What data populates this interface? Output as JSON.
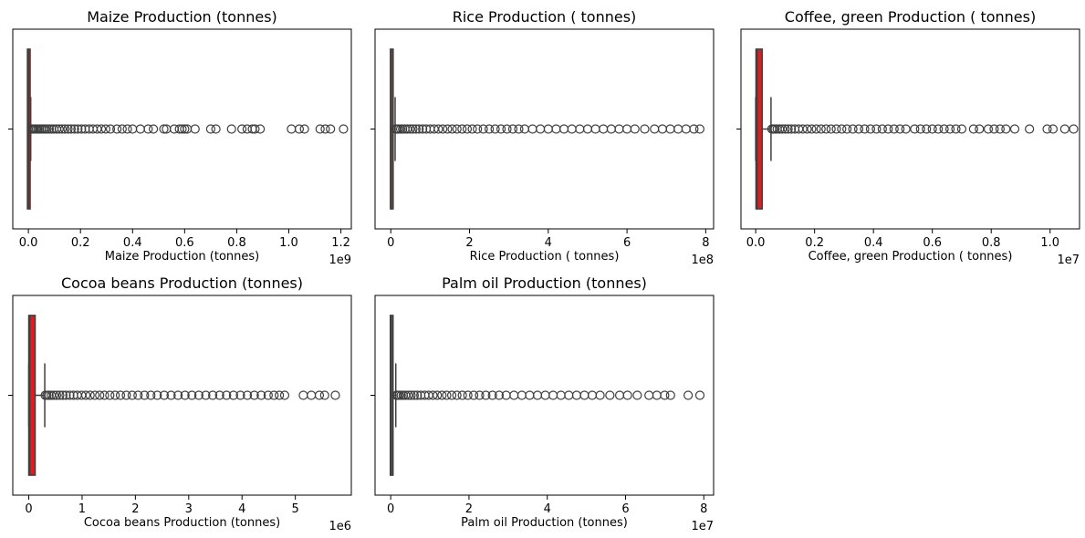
{
  "colors": {
    "box_fill": "#e8191c",
    "line": "#3f3f3f",
    "frame": "#000000"
  },
  "chart_data": [
    {
      "type": "boxplot",
      "orientation": "horizontal",
      "title": "Maize Production (tonnes)",
      "xlabel": "Maize Production (tonnes)",
      "ylabel": "",
      "offset_label": "1e9",
      "xlim": [
        -0.06,
        1.24
      ],
      "xticks": [
        0.0,
        0.2,
        0.4,
        0.6,
        0.8,
        1.0,
        1.2
      ],
      "xtick_labels": [
        "0.0",
        "0.2",
        "0.4",
        "0.6",
        "0.8",
        "1.0",
        "1.2"
      ],
      "box": {
        "q1": 0.0,
        "median": 0.0005,
        "q3": 0.003,
        "whisker_low": 0.0,
        "whisker_high": 0.009
      },
      "outliers": [
        0.012,
        0.016,
        0.021,
        0.026,
        0.031,
        0.037,
        0.043,
        0.05,
        0.057,
        0.064,
        0.072,
        0.08,
        0.089,
        0.098,
        0.108,
        0.118,
        0.129,
        0.14,
        0.152,
        0.164,
        0.177,
        0.19,
        0.204,
        0.218,
        0.233,
        0.248,
        0.264,
        0.28,
        0.297,
        0.315,
        0.34,
        0.36,
        0.38,
        0.4,
        0.43,
        0.46,
        0.48,
        0.52,
        0.53,
        0.56,
        0.58,
        0.59,
        0.6,
        0.61,
        0.64,
        0.7,
        0.72,
        0.78,
        0.82,
        0.84,
        0.86,
        0.87,
        0.89,
        1.01,
        1.04,
        1.06,
        1.12,
        1.14,
        1.16,
        1.21
      ]
    },
    {
      "type": "boxplot",
      "orientation": "horizontal",
      "title": "Rice  Production ( tonnes)",
      "xlabel": "Rice  Production ( tonnes)",
      "ylabel": "",
      "offset_label": "1e8",
      "xlim": [
        -0.4,
        8.2
      ],
      "xticks": [
        0,
        2,
        4,
        6,
        8
      ],
      "xtick_labels": [
        "0",
        "2",
        "4",
        "6",
        "8"
      ],
      "box": {
        "q1": 0.0,
        "median": 0.005,
        "q3": 0.05,
        "whisker_low": 0.0,
        "whisker_high": 0.11
      },
      "outliers": [
        0.13,
        0.16,
        0.2,
        0.25,
        0.3,
        0.36,
        0.42,
        0.49,
        0.56,
        0.64,
        0.72,
        0.81,
        0.9,
        1.0,
        1.1,
        1.21,
        1.32,
        1.44,
        1.56,
        1.68,
        1.81,
        1.94,
        2.07,
        2.2,
        2.35,
        2.5,
        2.65,
        2.8,
        2.95,
        3.1,
        3.25,
        3.4,
        3.6,
        3.8,
        4.0,
        4.2,
        4.4,
        4.6,
        4.8,
        5.0,
        5.2,
        5.4,
        5.6,
        5.8,
        6.0,
        6.2,
        6.45,
        6.7,
        6.9,
        7.1,
        7.3,
        7.5,
        7.7,
        7.85
      ]
    },
    {
      "type": "boxplot",
      "orientation": "horizontal",
      "title": "Coffee, green Production ( tonnes)",
      "xlabel": "Coffee, green Production ( tonnes)",
      "ylabel": "",
      "offset_label": "1e7",
      "xlim": [
        -0.05,
        1.1
      ],
      "xticks": [
        0.0,
        0.2,
        0.4,
        0.6,
        0.8,
        1.0
      ],
      "xtick_labels": [
        "0.0",
        "0.2",
        "0.4",
        "0.6",
        "0.8",
        "1.0"
      ],
      "box": {
        "q1": 0.001,
        "median": 0.005,
        "q3": 0.022,
        "whisker_low": 0.0,
        "whisker_high": 0.052
      },
      "outliers": [
        0.055,
        0.06,
        0.066,
        0.073,
        0.081,
        0.09,
        0.1,
        0.11,
        0.121,
        0.133,
        0.146,
        0.16,
        0.175,
        0.19,
        0.206,
        0.222,
        0.239,
        0.256,
        0.274,
        0.292,
        0.31,
        0.33,
        0.35,
        0.37,
        0.39,
        0.41,
        0.43,
        0.45,
        0.47,
        0.49,
        0.51,
        0.54,
        0.56,
        0.58,
        0.6,
        0.62,
        0.64,
        0.66,
        0.68,
        0.7,
        0.74,
        0.76,
        0.79,
        0.81,
        0.83,
        0.85,
        0.88,
        0.93,
        0.99,
        1.01,
        1.05,
        1.08
      ]
    },
    {
      "type": "boxplot",
      "orientation": "horizontal",
      "title": "Cocoa beans Production (tonnes)",
      "xlabel": "Cocoa beans Production (tonnes)",
      "ylabel": "",
      "offset_label": "1e6",
      "xlim": [
        -0.3,
        6.05
      ],
      "xticks": [
        0,
        1,
        2,
        3,
        4,
        5
      ],
      "xtick_labels": [
        "0",
        "1",
        "2",
        "3",
        "4",
        "5"
      ],
      "box": {
        "q1": 0.0,
        "median": 0.02,
        "q3": 0.12,
        "whisker_low": 0.0,
        "whisker_high": 0.3
      },
      "outliers": [
        0.31,
        0.34,
        0.38,
        0.42,
        0.47,
        0.52,
        0.58,
        0.64,
        0.7,
        0.77,
        0.84,
        0.91,
        0.99,
        1.07,
        1.15,
        1.24,
        1.33,
        1.42,
        1.52,
        1.62,
        1.72,
        1.83,
        1.94,
        2.05,
        2.17,
        2.29,
        2.41,
        2.54,
        2.67,
        2.8,
        2.93,
        3.06,
        3.19,
        3.32,
        3.45,
        3.58,
        3.71,
        3.84,
        3.97,
        4.1,
        4.23,
        4.36,
        4.49,
        4.6,
        4.7,
        4.8,
        5.15,
        5.3,
        5.45,
        5.55,
        5.75
      ]
    },
    {
      "type": "boxplot",
      "orientation": "horizontal",
      "title": "Palm oil  Production (tonnes)",
      "xlabel": "Palm oil  Production (tonnes)",
      "ylabel": "",
      "offset_label": "1e7",
      "xlim": [
        -0.4,
        8.25
      ],
      "xticks": [
        0,
        2,
        4,
        6,
        8
      ],
      "xtick_labels": [
        "0",
        "2",
        "4",
        "6",
        "8"
      ],
      "box": {
        "q1": 0.0,
        "median": 0.005,
        "q3": 0.05,
        "whisker_low": 0.0,
        "whisker_high": 0.13
      },
      "outliers": [
        0.15,
        0.18,
        0.22,
        0.27,
        0.32,
        0.38,
        0.45,
        0.52,
        0.6,
        0.68,
        0.77,
        0.87,
        0.97,
        1.08,
        1.19,
        1.31,
        1.43,
        1.56,
        1.69,
        1.83,
        1.97,
        2.12,
        2.27,
        2.43,
        2.6,
        2.77,
        2.95,
        3.15,
        3.35,
        3.55,
        3.75,
        3.95,
        4.15,
        4.35,
        4.55,
        4.75,
        4.95,
        5.15,
        5.35,
        5.6,
        5.85,
        6.05,
        6.3,
        6.6,
        6.8,
        7.0,
        7.15,
        7.6,
        7.9
      ]
    }
  ]
}
